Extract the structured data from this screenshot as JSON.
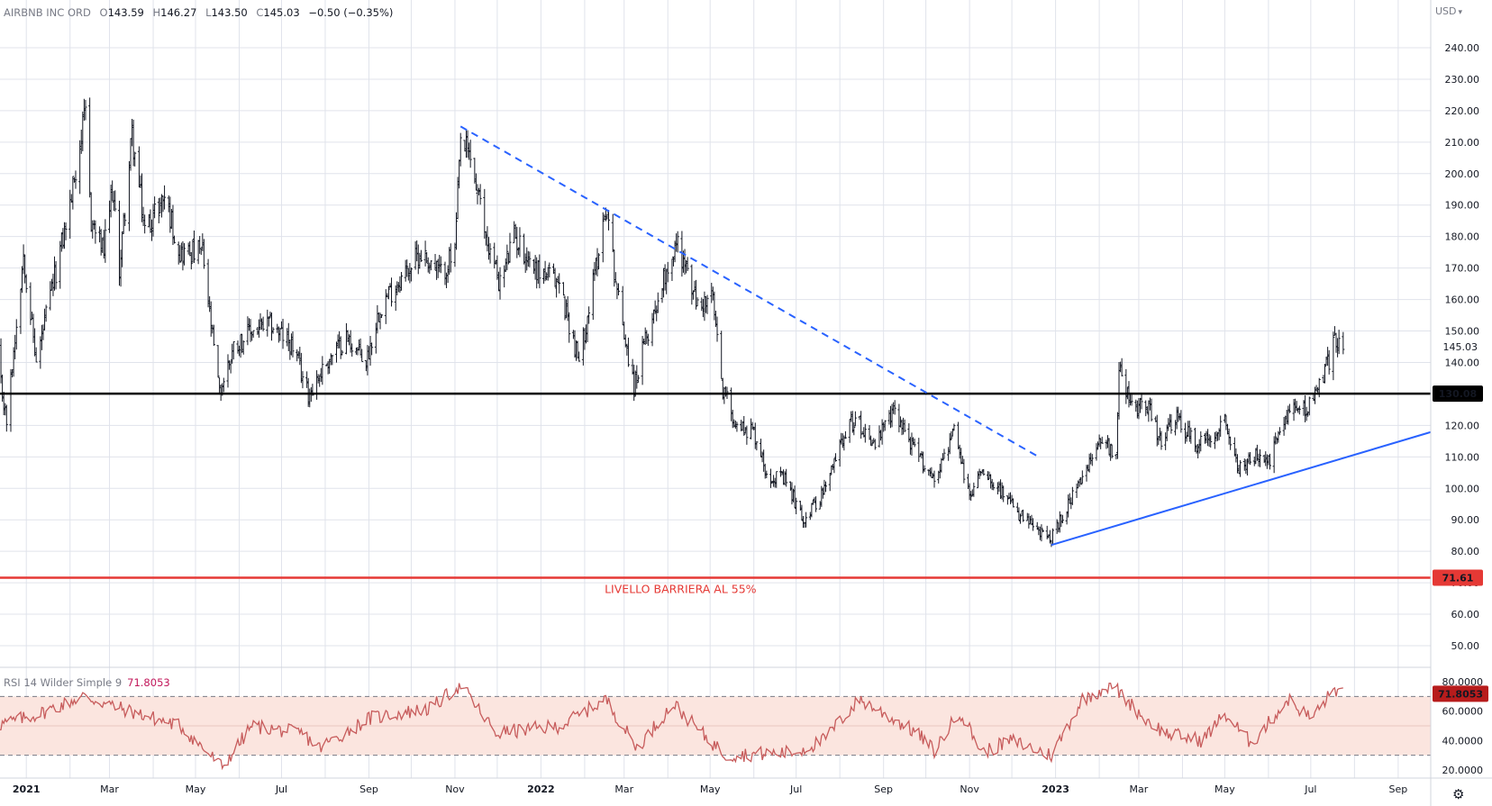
{
  "header": {
    "symbol": "AIRBNB INC ORD",
    "o_key": "O",
    "o": "143.59",
    "h_key": "H",
    "h": "146.27",
    "l_key": "L",
    "l": "143.50",
    "c_key": "C",
    "c": "145.03",
    "change": "−0.50 (−0.35%)"
  },
  "currency": "USD",
  "rsi_legend": {
    "name": "RSI 14 Wilder Simple 9",
    "value": "71.8053"
  },
  "annotation": "LIVELLO BARRIERA AL 55%",
  "colors": {
    "bars": "#131722",
    "support": "#000000",
    "barrier": "#e53935",
    "trendline": "#2962ff",
    "rsi_line": "#c75c5c",
    "rsi_band": "#fbe5df"
  },
  "chart_data": [
    {
      "type": "ohlc",
      "xlabel": "",
      "ylabel": "",
      "x_range": [
        "2020-12-10",
        "2023-09-30"
      ],
      "ylim": [
        45,
        250
      ],
      "y_ticks": [
        "240.00",
        "230.00",
        "220.00",
        "210.00",
        "200.00",
        "190.00",
        "180.00",
        "170.00",
        "160.00",
        "150.00",
        "140.00",
        "130.00",
        "120.00",
        "110.00",
        "100.00",
        "90.00",
        "80.00",
        "70.00",
        "60.00",
        "50.00"
      ],
      "x_ticks": [
        "2021",
        "Mar",
        "May",
        "Jul",
        "Sep",
        "Nov",
        "2022",
        "Mar",
        "May",
        "Jul",
        "Sep",
        "Nov",
        "2023",
        "Mar",
        "May",
        "Jul",
        "Sep"
      ],
      "last_price": {
        "value": 145.03,
        "label": "145.03"
      },
      "price_path": [
        [
          "2020-12-10",
          145
        ],
        [
          "2020-12-18",
          121
        ],
        [
          "2020-12-30",
          175
        ],
        [
          "2021-01-08",
          140
        ],
        [
          "2021-01-20",
          165
        ],
        [
          "2021-02-01",
          190
        ],
        [
          "2021-02-08",
          210
        ],
        [
          "2021-02-12",
          218
        ],
        [
          "2021-02-16",
          185
        ],
        [
          "2021-02-25",
          175
        ],
        [
          "2021-03-03",
          195
        ],
        [
          "2021-03-08",
          170
        ],
        [
          "2021-03-17",
          212
        ],
        [
          "2021-03-26",
          182
        ],
        [
          "2021-04-09",
          193
        ],
        [
          "2021-04-20",
          175
        ],
        [
          "2021-05-06",
          175
        ],
        [
          "2021-05-11",
          155
        ],
        [
          "2021-05-18",
          130
        ],
        [
          "2021-05-28",
          145
        ],
        [
          "2021-06-10",
          150
        ],
        [
          "2021-06-24",
          152
        ],
        [
          "2021-07-09",
          145
        ],
        [
          "2021-07-20",
          130
        ],
        [
          "2021-08-02",
          140
        ],
        [
          "2021-08-16",
          148
        ],
        [
          "2021-08-30",
          140
        ],
        [
          "2021-09-09",
          158
        ],
        [
          "2021-09-24",
          167
        ],
        [
          "2021-10-08",
          175
        ],
        [
          "2021-10-22",
          168
        ],
        [
          "2021-11-01",
          175
        ],
        [
          "2021-11-05",
          210
        ],
        [
          "2021-11-12",
          205
        ],
        [
          "2021-11-23",
          180
        ],
        [
          "2021-12-03",
          165
        ],
        [
          "2021-12-13",
          180
        ],
        [
          "2021-12-28",
          170
        ],
        [
          "2022-01-14",
          165
        ],
        [
          "2022-01-28",
          140
        ],
        [
          "2022-02-07",
          165
        ],
        [
          "2022-02-16",
          190
        ],
        [
          "2022-02-25",
          160
        ],
        [
          "2022-03-08",
          132
        ],
        [
          "2022-03-15",
          145
        ],
        [
          "2022-03-31",
          170
        ],
        [
          "2022-04-08",
          178
        ],
        [
          "2022-04-22",
          158
        ],
        [
          "2022-05-03",
          160
        ],
        [
          "2022-05-09",
          133
        ],
        [
          "2022-05-20",
          120
        ],
        [
          "2022-06-01",
          118
        ],
        [
          "2022-06-10",
          105
        ],
        [
          "2022-06-24",
          102
        ],
        [
          "2022-07-06",
          90
        ],
        [
          "2022-07-22",
          100
        ],
        [
          "2022-08-04",
          118
        ],
        [
          "2022-08-12",
          122
        ],
        [
          "2022-08-26",
          114
        ],
        [
          "2022-09-09",
          125
        ],
        [
          "2022-09-23",
          112
        ],
        [
          "2022-10-07",
          103
        ],
        [
          "2022-10-21",
          118
        ],
        [
          "2022-11-01",
          97
        ],
        [
          "2022-11-10",
          107
        ],
        [
          "2022-11-22",
          100
        ],
        [
          "2022-12-05",
          92
        ],
        [
          "2022-12-20",
          86
        ],
        [
          "2022-12-29",
          84
        ],
        [
          "2023-01-10",
          95
        ],
        [
          "2023-01-23",
          105
        ],
        [
          "2023-02-02",
          117
        ],
        [
          "2023-02-13",
          110
        ],
        [
          "2023-02-15",
          140
        ],
        [
          "2023-02-24",
          125
        ],
        [
          "2023-03-06",
          128
        ],
        [
          "2023-03-16",
          115
        ],
        [
          "2023-03-28",
          122
        ],
        [
          "2023-04-10",
          114
        ],
        [
          "2023-04-21",
          116
        ],
        [
          "2023-05-01",
          123
        ],
        [
          "2023-05-10",
          106
        ],
        [
          "2023-05-22",
          110
        ],
        [
          "2023-06-01",
          108
        ],
        [
          "2023-06-14",
          124
        ],
        [
          "2023-06-28",
          126
        ],
        [
          "2023-07-06",
          131
        ],
        [
          "2023-07-14",
          141
        ],
        [
          "2023-07-18",
          147
        ],
        [
          "2023-07-24",
          145.03
        ]
      ],
      "lines": [
        {
          "name": "support",
          "type": "horizontal",
          "y": 130.08,
          "label": "130.08"
        },
        {
          "name": "barrier",
          "type": "horizontal",
          "y": 71.61,
          "label": "71.61",
          "annotation": "LIVELLO BARRIERA AL 55%"
        },
        {
          "name": "downtrend",
          "style": "dashed",
          "from": [
            "2021-11-05",
            215
          ],
          "to": [
            "2022-12-20",
            110
          ]
        },
        {
          "name": "uptrend",
          "style": "solid",
          "from": [
            "2022-12-29",
            82
          ],
          "to": [
            "2023-09-25",
            118
          ]
        }
      ]
    },
    {
      "type": "line",
      "xlabel": "",
      "ylabel": "",
      "ylim": [
        20,
        80
      ],
      "y_ticks": [
        "80.0000",
        "60.0000",
        "40.0000",
        "20.0000"
      ],
      "band": [
        30,
        70
      ],
      "last_value": {
        "value": 71.8053,
        "label": "71.8053"
      },
      "rsi_path": [
        [
          "2020-12-10",
          50
        ],
        [
          "2021-01-10",
          58
        ],
        [
          "2021-02-10",
          70
        ],
        [
          "2021-03-15",
          60
        ],
        [
          "2021-04-20",
          50
        ],
        [
          "2021-05-20",
          22
        ],
        [
          "2021-06-10",
          50
        ],
        [
          "2021-07-15",
          45
        ],
        [
          "2021-07-28",
          35
        ],
        [
          "2021-09-01",
          55
        ],
        [
          "2021-10-15",
          62
        ],
        [
          "2021-11-05",
          78
        ],
        [
          "2021-11-30",
          45
        ],
        [
          "2022-01-15",
          50
        ],
        [
          "2022-02-16",
          68
        ],
        [
          "2022-03-10",
          35
        ],
        [
          "2022-04-05",
          65
        ],
        [
          "2022-04-25",
          45
        ],
        [
          "2022-05-12",
          30
        ],
        [
          "2022-07-01",
          32
        ],
        [
          "2022-07-20",
          40
        ],
        [
          "2022-08-15",
          68
        ],
        [
          "2022-09-25",
          45
        ],
        [
          "2022-10-07",
          33
        ],
        [
          "2022-10-25",
          60
        ],
        [
          "2022-11-10",
          32
        ],
        [
          "2022-12-01",
          40
        ],
        [
          "2022-12-29",
          30
        ],
        [
          "2023-01-20",
          68
        ],
        [
          "2023-02-10",
          78
        ],
        [
          "2023-03-05",
          55
        ],
        [
          "2023-03-20",
          45
        ],
        [
          "2023-04-15",
          40
        ],
        [
          "2023-05-01",
          58
        ],
        [
          "2023-05-20",
          38
        ],
        [
          "2023-06-15",
          68
        ],
        [
          "2023-07-01",
          55
        ],
        [
          "2023-07-18",
          75
        ],
        [
          "2023-07-24",
          71.8
        ]
      ]
    }
  ]
}
